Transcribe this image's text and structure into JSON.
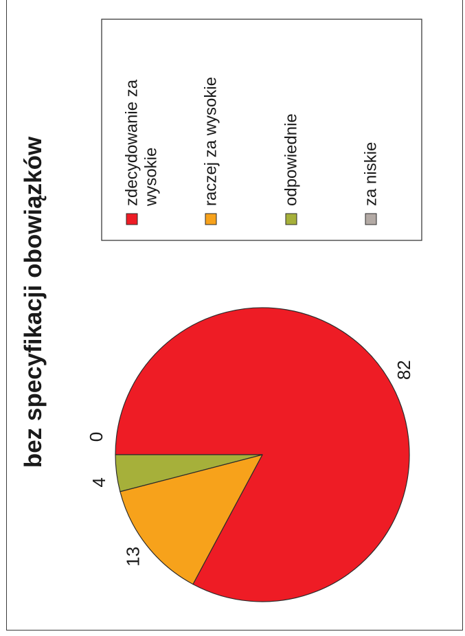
{
  "chart_data": {
    "type": "pie",
    "title": "bez specyfikacji obowiązków",
    "slices": [
      {
        "key": "a",
        "label_lines": [
          "zdecydowanie za",
          "wysokie"
        ],
        "value": 82,
        "color": "#ee1c25"
      },
      {
        "key": "b",
        "label_lines": [
          "raczej za wysokie"
        ],
        "value": 13,
        "color": "#f7a21b"
      },
      {
        "key": "c",
        "label_lines": [
          "odpowiednie"
        ],
        "value": 4,
        "color": "#a6b03a"
      },
      {
        "key": "d",
        "label_lines": [
          "za niskie"
        ],
        "value": 0,
        "color": "#b3aaa5"
      }
    ],
    "legend_position": "right",
    "orientation": "rotated 90° counter-clockwise"
  }
}
